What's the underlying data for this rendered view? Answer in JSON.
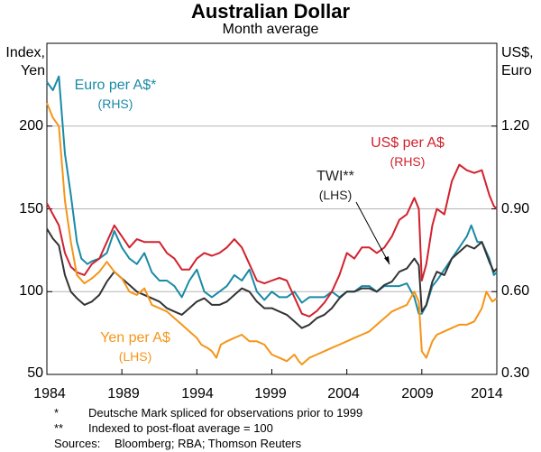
{
  "chart_data": {
    "type": "line",
    "title": "Australian Dollar",
    "subtitle": "Month average",
    "left_axis": {
      "title_line1": "Index,",
      "title_line2": "Yen",
      "ylim": [
        50,
        250
      ],
      "ticks": [
        50,
        100,
        150,
        200
      ],
      "tick_labels": [
        "50",
        "100",
        "150",
        "200"
      ]
    },
    "right_axis": {
      "title_line1": "US$,",
      "title_line2": "Euro",
      "ylim": [
        0.3,
        1.5
      ],
      "ticks": [
        0.3,
        0.6,
        0.9,
        1.2
      ],
      "tick_labels": [
        "0.30",
        "0.60",
        "0.90",
        "1.20"
      ]
    },
    "x_axis": {
      "xlim": [
        1984,
        2014
      ],
      "ticks": [
        1984,
        1989,
        1994,
        1999,
        2004,
        2009,
        2014
      ],
      "tick_labels": [
        "1984",
        "1989",
        "1994",
        "1999",
        "2004",
        "2009",
        "2014"
      ]
    },
    "grid": true,
    "series": [
      {
        "name": "Euro per A$*",
        "axis": "right",
        "color": "#1a8aa6",
        "label_line1": "Euro per A$*",
        "label_line2": "(RHS)",
        "x": [
          1984.0,
          1984.4,
          1984.8,
          1985.2,
          1985.6,
          1986.0,
          1986.3,
          1986.7,
          1987.0,
          1987.5,
          1988.0,
          1988.5,
          1989.0,
          1989.5,
          1990.0,
          1990.5,
          1991.0,
          1991.5,
          1992.0,
          1992.5,
          1993.0,
          1993.5,
          1994.0,
          1994.5,
          1995.0,
          1995.5,
          1996.0,
          1996.5,
          1997.0,
          1997.5,
          1998.0,
          1998.5,
          1999.0,
          1999.5,
          2000.0,
          2000.5,
          2001.0,
          2001.5,
          2002.0,
          2002.5,
          2003.0,
          2003.5,
          2004.0,
          2004.5,
          2005.0,
          2005.5,
          2006.0,
          2006.5,
          2007.0,
          2007.5,
          2008.0,
          2008.5,
          2008.8,
          2009.0,
          2009.3,
          2009.7,
          2010.0,
          2010.5,
          2011.0,
          2011.5,
          2012.0,
          2012.3,
          2012.7,
          2013.0,
          2013.5,
          2013.8,
          2014.0
        ],
        "values": [
          1.36,
          1.33,
          1.38,
          1.1,
          0.95,
          0.78,
          0.72,
          0.7,
          0.71,
          0.72,
          0.74,
          0.82,
          0.76,
          0.72,
          0.7,
          0.74,
          0.67,
          0.64,
          0.64,
          0.62,
          0.58,
          0.64,
          0.68,
          0.6,
          0.58,
          0.6,
          0.62,
          0.66,
          0.64,
          0.68,
          0.6,
          0.57,
          0.6,
          0.58,
          0.58,
          0.6,
          0.56,
          0.58,
          0.58,
          0.58,
          0.6,
          0.58,
          0.6,
          0.6,
          0.62,
          0.62,
          0.6,
          0.62,
          0.62,
          0.62,
          0.63,
          0.58,
          0.52,
          0.52,
          0.55,
          0.62,
          0.64,
          0.68,
          0.72,
          0.76,
          0.8,
          0.84,
          0.78,
          0.78,
          0.72,
          0.66,
          0.67
        ]
      },
      {
        "name": "US$ per A$",
        "axis": "right",
        "color": "#d1222e",
        "label_line1": "US$ per A$",
        "label_line2": "(RHS)",
        "x": [
          1984.0,
          1984.4,
          1984.8,
          1985.2,
          1985.6,
          1986.0,
          1986.5,
          1987.0,
          1987.5,
          1988.0,
          1988.5,
          1989.0,
          1989.5,
          1990.0,
          1990.5,
          1991.0,
          1991.5,
          1992.0,
          1992.5,
          1993.0,
          1993.5,
          1994.0,
          1994.5,
          1995.0,
          1995.5,
          1996.0,
          1996.5,
          1997.0,
          1997.5,
          1998.0,
          1998.5,
          1999.0,
          1999.5,
          2000.0,
          2000.5,
          2001.0,
          2001.5,
          2002.0,
          2002.5,
          2003.0,
          2003.5,
          2004.0,
          2004.5,
          2005.0,
          2005.5,
          2006.0,
          2006.5,
          2007.0,
          2007.5,
          2008.0,
          2008.5,
          2008.8,
          2009.0,
          2009.3,
          2009.7,
          2010.0,
          2010.5,
          2011.0,
          2011.5,
          2012.0,
          2012.5,
          2013.0,
          2013.5,
          2013.8,
          2014.0
        ],
        "values": [
          0.92,
          0.88,
          0.84,
          0.74,
          0.69,
          0.67,
          0.66,
          0.7,
          0.72,
          0.78,
          0.84,
          0.8,
          0.76,
          0.79,
          0.78,
          0.78,
          0.78,
          0.74,
          0.72,
          0.68,
          0.68,
          0.72,
          0.74,
          0.73,
          0.74,
          0.76,
          0.79,
          0.76,
          0.7,
          0.64,
          0.63,
          0.64,
          0.65,
          0.64,
          0.58,
          0.52,
          0.51,
          0.53,
          0.56,
          0.6,
          0.66,
          0.74,
          0.72,
          0.76,
          0.76,
          0.74,
          0.76,
          0.8,
          0.86,
          0.88,
          0.94,
          0.9,
          0.64,
          0.7,
          0.84,
          0.9,
          0.88,
          1.0,
          1.06,
          1.04,
          1.03,
          1.04,
          0.95,
          0.91,
          0.9
        ]
      },
      {
        "name": "TWI**",
        "axis": "left",
        "color": "#333333",
        "label_line1": "TWI**",
        "label_line2": "(LHS)",
        "x": [
          1984.0,
          1984.4,
          1984.8,
          1985.2,
          1985.6,
          1986.0,
          1986.5,
          1987.0,
          1987.5,
          1988.0,
          1988.5,
          1989.0,
          1989.5,
          1990.0,
          1990.5,
          1991.0,
          1991.5,
          1992.0,
          1992.5,
          1993.0,
          1993.5,
          1994.0,
          1994.5,
          1995.0,
          1995.5,
          1996.0,
          1996.5,
          1997.0,
          1997.5,
          1998.0,
          1998.5,
          1999.0,
          1999.5,
          2000.0,
          2000.5,
          2001.0,
          2001.5,
          2002.0,
          2002.5,
          2003.0,
          2003.5,
          2004.0,
          2004.5,
          2005.0,
          2005.5,
          2006.0,
          2006.5,
          2007.0,
          2007.5,
          2008.0,
          2008.5,
          2008.8,
          2009.0,
          2009.3,
          2009.7,
          2010.0,
          2010.5,
          2011.0,
          2011.5,
          2012.0,
          2012.5,
          2013.0,
          2013.5,
          2013.8,
          2014.0
        ],
        "values": [
          138,
          132,
          128,
          110,
          100,
          96,
          92,
          94,
          98,
          106,
          112,
          108,
          104,
          100,
          98,
          96,
          94,
          90,
          88,
          86,
          90,
          94,
          96,
          92,
          92,
          94,
          98,
          102,
          100,
          94,
          90,
          90,
          88,
          86,
          82,
          78,
          80,
          84,
          86,
          90,
          96,
          100,
          100,
          102,
          102,
          100,
          104,
          106,
          112,
          114,
          120,
          116,
          88,
          92,
          106,
          112,
          110,
          120,
          124,
          128,
          126,
          130,
          118,
          112,
          114
        ]
      },
      {
        "name": "Yen per A$",
        "axis": "left",
        "color": "#f59518",
        "label_line1": "Yen per A$",
        "label_line2": "(LHS)",
        "x": [
          1984.0,
          1984.4,
          1984.8,
          1985.2,
          1985.6,
          1986.0,
          1986.5,
          1987.0,
          1987.5,
          1988.0,
          1988.5,
          1989.0,
          1989.5,
          1990.0,
          1990.5,
          1991.0,
          1991.5,
          1992.0,
          1992.5,
          1993.0,
          1993.5,
          1994.0,
          1994.3,
          1994.7,
          1995.0,
          1995.3,
          1995.6,
          1996.0,
          1996.5,
          1997.0,
          1997.5,
          1998.0,
          1998.5,
          1999.0,
          1999.5,
          2000.0,
          2000.5,
          2000.8,
          2001.0,
          2001.5,
          2002.0,
          2002.5,
          2003.0,
          2003.5,
          2004.0,
          2004.5,
          2005.0,
          2005.5,
          2006.0,
          2006.5,
          2007.0,
          2007.5,
          2008.0,
          2008.5,
          2008.8,
          2009.0,
          2009.3,
          2009.7,
          2010.0,
          2010.5,
          2011.0,
          2011.5,
          2012.0,
          2012.5,
          2013.0,
          2013.3,
          2013.7,
          2014.0
        ],
        "values": [
          214,
          205,
          200,
          155,
          130,
          110,
          105,
          108,
          112,
          118,
          112,
          108,
          100,
          98,
          102,
          92,
          90,
          88,
          84,
          80,
          76,
          72,
          68,
          66,
          64,
          60,
          68,
          70,
          72,
          74,
          70,
          70,
          68,
          62,
          60,
          58,
          62,
          58,
          56,
          60,
          62,
          64,
          66,
          68,
          70,
          72,
          74,
          76,
          80,
          84,
          88,
          90,
          92,
          100,
          94,
          64,
          60,
          70,
          74,
          76,
          78,
          80,
          80,
          82,
          90,
          100,
          94,
          96
        ]
      }
    ],
    "notes": [
      {
        "mark": "*",
        "text": "Deutsche Mark spliced for observations prior to 1999"
      },
      {
        "mark": "**",
        "text": "Indexed to post-float average = 100"
      },
      {
        "mark": "Sources:",
        "text": "Bloomberg; RBA; Thomson Reuters"
      }
    ]
  }
}
